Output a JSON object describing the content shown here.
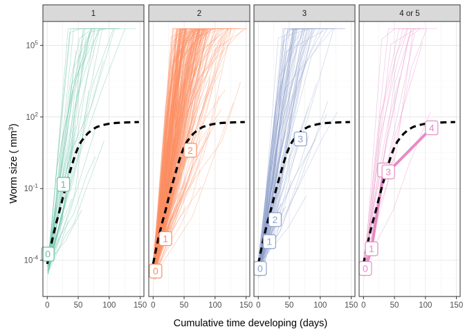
{
  "chart_data": {
    "type": "line",
    "xlabel": "Cumulative time developing (days)",
    "ylabel_prefix": "Worm size ( mm",
    "ylabel_sup": "3",
    "ylabel_suffix": ")",
    "y_scale": "log10",
    "ylim": [
      3e-06,
      1000000
    ],
    "xlim": [
      -7,
      156
    ],
    "x_ticks": [
      0,
      50,
      100,
      150
    ],
    "x_tick_labels": [
      "0",
      "50",
      "100",
      "150"
    ],
    "y_ticks": [
      0.0001,
      0.1,
      100,
      100000
    ],
    "y_tick_labels": [
      {
        "base": "10",
        "exp": "-4"
      },
      {
        "base": "10",
        "exp": "-1"
      },
      {
        "base": "10",
        "exp": "2"
      },
      {
        "base": "10",
        "exp": "5"
      }
    ],
    "grid": true,
    "mean_curve": {
      "style": "dashed-black",
      "x": [
        0,
        5,
        10,
        15,
        20,
        25,
        30,
        35,
        40,
        45,
        50,
        55,
        60,
        65,
        70,
        75,
        80,
        90,
        100,
        110,
        120,
        130,
        140,
        148
      ],
      "y": [
        7e-05,
        0.0003,
        0.0012,
        0.004,
        0.012,
        0.04,
        0.12,
        0.35,
        1,
        2.6,
        5.5,
        9.5,
        14,
        20,
        26,
        32,
        38,
        46,
        52,
        56,
        58,
        59.5,
        60.5,
        61
      ]
    },
    "panels": [
      {
        "strip": "1",
        "color": "#66C2A5",
        "n_trajectories": 40,
        "points": [
          {
            "label": "0",
            "x": 1,
            "y": 0.00018
          },
          {
            "label": "1",
            "x": 26,
            "y": 0.15
          }
        ],
        "highlight_path": false
      },
      {
        "strip": "2",
        "color": "#FC8D62",
        "n_trajectories": 300,
        "points": [
          {
            "label": "0",
            "x": 4,
            "y": 3.5e-05
          },
          {
            "label": "1",
            "x": 20,
            "y": 0.0008
          },
          {
            "label": "2",
            "x": 60,
            "y": 4
          }
        ],
        "highlight_path": false
      },
      {
        "strip": "3",
        "color": "#8DA0CB",
        "n_trajectories": 100,
        "points": [
          {
            "label": "0",
            "x": 3,
            "y": 4.5e-05
          },
          {
            "label": "1",
            "x": 18,
            "y": 0.0006
          },
          {
            "label": "2",
            "x": 27,
            "y": 0.005
          },
          {
            "label": "3",
            "x": 68,
            "y": 12
          }
        ],
        "highlight_path": false
      },
      {
        "strip": "4 or 5",
        "color": "#E78AC3",
        "n_trajectories": 18,
        "points": [
          {
            "label": "0",
            "x": 3,
            "y": 4.5e-05
          },
          {
            "label": "1",
            "x": 13,
            "y": 0.0003
          },
          {
            "label": "3",
            "x": 33,
            "y": 0.6
          },
          {
            "label": "3",
            "x": 40,
            "y": 0.5
          },
          {
            "label": "4",
            "x": 110,
            "y": 35
          }
        ],
        "highlight_path": true
      }
    ]
  }
}
